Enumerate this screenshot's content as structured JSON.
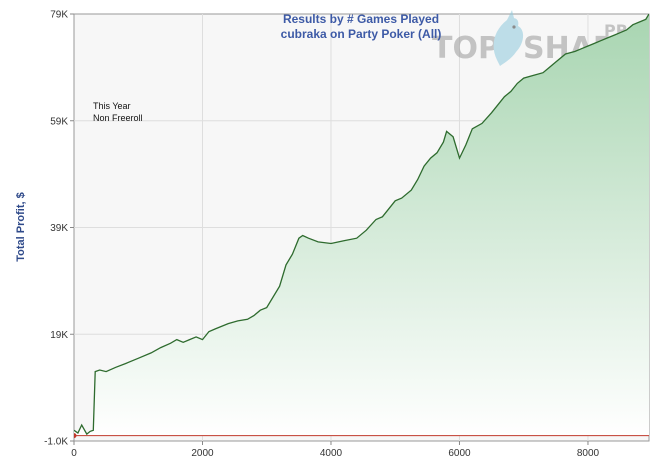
{
  "chart_data": {
    "type": "area",
    "title": "Results by # Games Played",
    "subtitle": "cubraka on Party Poker (All)",
    "xlabel": "",
    "ylabel": "Total Profit, $",
    "xlim": [
      0,
      8950
    ],
    "ylim": [
      -1000,
      79000
    ],
    "x_ticks": [
      0,
      2000,
      4000,
      6000,
      8000
    ],
    "x_tick_labels": [
      "0",
      "2000",
      "4000",
      "6000",
      "8000"
    ],
    "y_ticks": [
      -1000,
      19000,
      39000,
      59000,
      79000
    ],
    "y_tick_labels": [
      "-1.0K",
      "19K",
      "39K",
      "59K",
      "79K"
    ],
    "grid": true,
    "annotations": [
      "This Year",
      "Non Freeroll"
    ],
    "series": [
      {
        "x": [
          0,
          60,
          120,
          200,
          250,
          300,
          330,
          400,
          500,
          650,
          800,
          1000,
          1200,
          1350,
          1500,
          1600,
          1700,
          1800,
          1900,
          2000,
          2100,
          2200,
          2400,
          2550,
          2700,
          2800,
          2900,
          3000,
          3200,
          3300,
          3400,
          3500,
          3560,
          3650,
          3800,
          4000,
          4200,
          4400,
          4550,
          4700,
          4800,
          4900,
          5000,
          5100,
          5250,
          5350,
          5450,
          5550,
          5650,
          5750,
          5800,
          5900,
          6000,
          6100,
          6200,
          6350,
          6500,
          6600,
          6700,
          6800,
          6900,
          7000,
          7150,
          7300,
          7400,
          7500,
          7650,
          7800,
          7900,
          8000,
          8100,
          8200,
          8300,
          8400,
          8500,
          8600,
          8700,
          8800,
          8900,
          8950
        ],
        "y": [
          1000,
          500,
          2000,
          300,
          800,
          1000,
          12000,
          12300,
          12000,
          12800,
          13500,
          14500,
          15500,
          16500,
          17300,
          18000,
          17500,
          18000,
          18500,
          18000,
          19500,
          20000,
          21000,
          21500,
          21800,
          22500,
          23500,
          24000,
          28000,
          32000,
          34000,
          37000,
          37500,
          37000,
          36300,
          36000,
          36500,
          37000,
          38500,
          40500,
          41000,
          42500,
          44000,
          44500,
          46000,
          48000,
          50500,
          52000,
          53000,
          55000,
          57000,
          56000,
          52000,
          54500,
          57500,
          58500,
          60500,
          62000,
          63500,
          64500,
          66000,
          67000,
          67500,
          68000,
          69000,
          70000,
          71500,
          72000,
          72500,
          73000,
          73500,
          74000,
          74500,
          75000,
          75500,
          76000,
          77000,
          77500,
          78000,
          79000
        ]
      }
    ],
    "colors": {
      "line": "#2e6b2e",
      "fill_top": "#a8d5b1",
      "fill_bottom": "#ffffff",
      "zero_line": "#c0392b",
      "title": "#3d5aa6",
      "plot_bg": "#f7f7f7",
      "grid": "#dedede"
    }
  },
  "watermark": {
    "brand_left": "TOP",
    "brand_right": "SHARK",
    "brand_suffix": "PRO"
  }
}
